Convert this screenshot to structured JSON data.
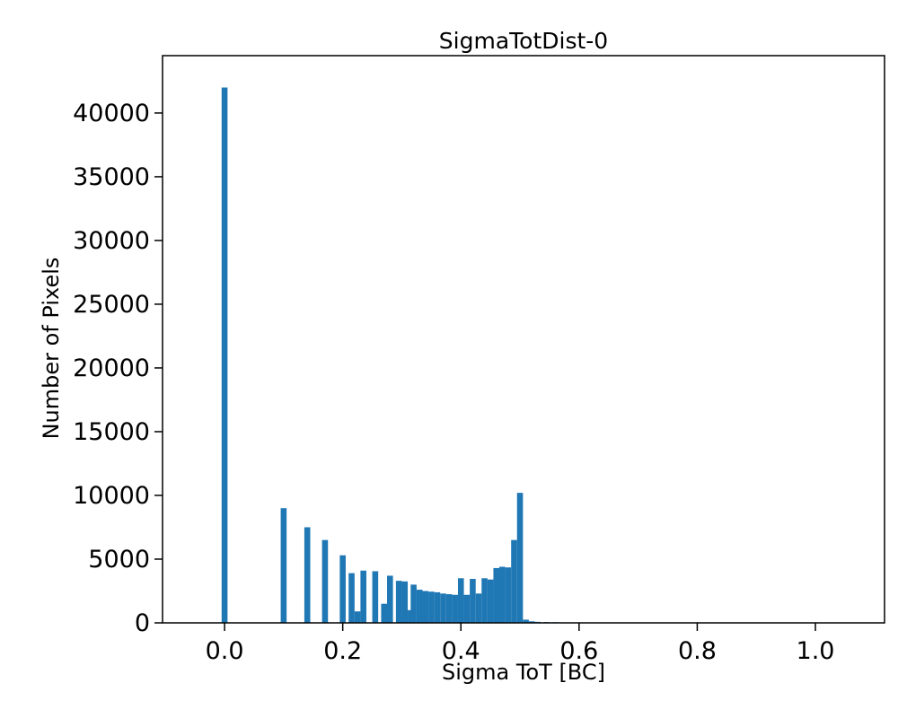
{
  "chart_data": {
    "type": "bar",
    "title": "SigmaTotDist-0",
    "xlabel": "Sigma ToT [BC]",
    "ylabel": "Number of Pixels",
    "xlim": [
      -0.105,
      1.117
    ],
    "ylim": [
      0,
      44500
    ],
    "x_ticks": [
      0.0,
      0.2,
      0.4,
      0.6,
      0.8,
      1.0
    ],
    "y_ticks": [
      0,
      5000,
      10000,
      15000,
      20000,
      25000,
      30000,
      35000,
      40000
    ],
    "bar_color": "#1f77b4",
    "background_color": "#ffffff",
    "grid": false,
    "legend": "none",
    "bin_width": 0.01,
    "bins": [
      [
        0.0,
        42000
      ],
      [
        0.1,
        9000
      ],
      [
        0.14,
        7500
      ],
      [
        0.17,
        6500
      ],
      [
        0.2,
        5300
      ],
      [
        0.215,
        3900
      ],
      [
        0.225,
        900
      ],
      [
        0.235,
        4100
      ],
      [
        0.255,
        4050
      ],
      [
        0.27,
        1500
      ],
      [
        0.28,
        3700
      ],
      [
        0.295,
        3300
      ],
      [
        0.305,
        3250
      ],
      [
        0.315,
        1000
      ],
      [
        0.32,
        3000
      ],
      [
        0.33,
        2600
      ],
      [
        0.34,
        2500
      ],
      [
        0.35,
        2450
      ],
      [
        0.36,
        2400
      ],
      [
        0.37,
        2300
      ],
      [
        0.38,
        2250
      ],
      [
        0.39,
        2200
      ],
      [
        0.4,
        3500
      ],
      [
        0.41,
        2200
      ],
      [
        0.42,
        3450
      ],
      [
        0.43,
        2300
      ],
      [
        0.44,
        3500
      ],
      [
        0.45,
        3400
      ],
      [
        0.46,
        4300
      ],
      [
        0.47,
        4400
      ],
      [
        0.48,
        4350
      ],
      [
        0.49,
        6500
      ],
      [
        0.5,
        10200
      ],
      [
        0.51,
        250
      ],
      [
        0.52,
        120
      ],
      [
        0.53,
        80
      ],
      [
        0.545,
        60
      ],
      [
        0.56,
        50
      ]
    ]
  }
}
